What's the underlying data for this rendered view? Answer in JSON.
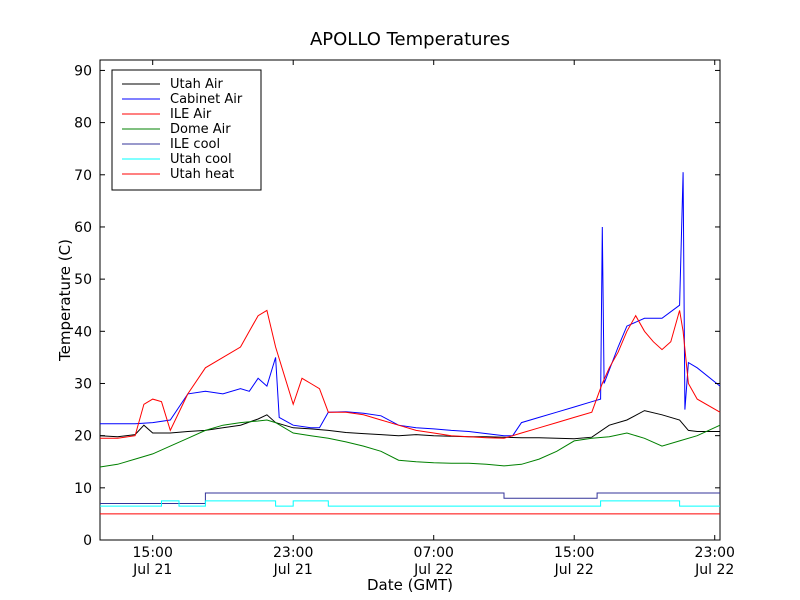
{
  "chart_data": {
    "type": "line",
    "title": "APOLLO Temperatures",
    "xlabel": "Date (GMT)",
    "ylabel": "Temperature (C)",
    "xlim": [
      12.0,
      47.3
    ],
    "ylim": [
      0,
      92
    ],
    "yticks": [
      0,
      10,
      20,
      30,
      40,
      50,
      60,
      70,
      80,
      90
    ],
    "xticks": [
      {
        "x": 15,
        "time": "15:00",
        "date": "Jul 21"
      },
      {
        "x": 23,
        "time": "23:00",
        "date": "Jul 21"
      },
      {
        "x": 31,
        "time": "07:00",
        "date": "Jul 22"
      },
      {
        "x": 39,
        "time": "15:00",
        "date": "Jul 22"
      },
      {
        "x": 47,
        "time": "23:00",
        "date": "Jul 22"
      }
    ],
    "legend_position": "top-left",
    "series": [
      {
        "name": "Utah Air",
        "color": "#000000",
        "points": [
          [
            12.0,
            20.0
          ],
          [
            13.0,
            19.8
          ],
          [
            14.0,
            20.2
          ],
          [
            14.5,
            22.0
          ],
          [
            15.0,
            20.5
          ],
          [
            16.0,
            20.5
          ],
          [
            17.0,
            20.8
          ],
          [
            18.0,
            21.0
          ],
          [
            19.0,
            21.5
          ],
          [
            20.0,
            22.0
          ],
          [
            21.0,
            23.2
          ],
          [
            21.5,
            24.0
          ],
          [
            22.0,
            22.5
          ],
          [
            23.0,
            21.5
          ],
          [
            24.0,
            21.3
          ],
          [
            25.0,
            21.0
          ],
          [
            26.0,
            20.6
          ],
          [
            27.0,
            20.4
          ],
          [
            28.0,
            20.2
          ],
          [
            29.0,
            20.0
          ],
          [
            30.0,
            20.2
          ],
          [
            31.0,
            20.0
          ],
          [
            32.0,
            19.9
          ],
          [
            33.0,
            19.8
          ],
          [
            34.0,
            19.8
          ],
          [
            35.0,
            19.7
          ],
          [
            36.0,
            19.6
          ],
          [
            37.0,
            19.6
          ],
          [
            38.0,
            19.5
          ],
          [
            39.0,
            19.4
          ],
          [
            40.0,
            19.7
          ],
          [
            41.0,
            22.0
          ],
          [
            42.0,
            23.0
          ],
          [
            43.0,
            24.8
          ],
          [
            44.0,
            24.0
          ],
          [
            45.0,
            23.0
          ],
          [
            45.5,
            21.0
          ],
          [
            46.0,
            20.8
          ],
          [
            47.3,
            20.8
          ]
        ]
      },
      {
        "name": "Cabinet Air",
        "color": "#0000ff",
        "points": [
          [
            12.0,
            22.3
          ],
          [
            14.0,
            22.3
          ],
          [
            15.0,
            22.5
          ],
          [
            16.0,
            23.0
          ],
          [
            17.0,
            28.0
          ],
          [
            18.0,
            28.5
          ],
          [
            19.0,
            28.0
          ],
          [
            20.0,
            29.0
          ],
          [
            20.5,
            28.5
          ],
          [
            21.0,
            31.0
          ],
          [
            21.5,
            29.5
          ],
          [
            22.0,
            35.0
          ],
          [
            22.2,
            23.5
          ],
          [
            23.0,
            22.0
          ],
          [
            24.0,
            21.5
          ],
          [
            24.5,
            21.5
          ],
          [
            25.0,
            24.5
          ],
          [
            26.0,
            24.6
          ],
          [
            27.0,
            24.3
          ],
          [
            28.0,
            23.8
          ],
          [
            29.0,
            22.0
          ],
          [
            30.0,
            21.5
          ],
          [
            31.0,
            21.3
          ],
          [
            32.0,
            21.0
          ],
          [
            33.0,
            20.8
          ],
          [
            34.0,
            20.4
          ],
          [
            35.0,
            20.0
          ],
          [
            35.5,
            20.0
          ],
          [
            36.0,
            22.5
          ],
          [
            37.0,
            23.5
          ],
          [
            38.0,
            24.5
          ],
          [
            39.0,
            25.5
          ],
          [
            40.0,
            26.5
          ],
          [
            40.5,
            27.0
          ],
          [
            40.6,
            60.0
          ],
          [
            40.7,
            30.0
          ],
          [
            41.5,
            37.0
          ],
          [
            42.0,
            41.0
          ],
          [
            43.0,
            42.5
          ],
          [
            44.0,
            42.5
          ],
          [
            45.0,
            45.0
          ],
          [
            45.2,
            70.5
          ],
          [
            45.3,
            25.0
          ],
          [
            45.5,
            34.0
          ],
          [
            46.0,
            33.0
          ],
          [
            47.3,
            29.5
          ]
        ]
      },
      {
        "name": "ILE Air",
        "color": "#ff0000",
        "points": [
          [
            12.0,
            19.5
          ],
          [
            13.0,
            19.5
          ],
          [
            14.0,
            20.0
          ],
          [
            14.5,
            26.0
          ],
          [
            15.0,
            27.0
          ],
          [
            15.5,
            26.5
          ],
          [
            16.0,
            21.0
          ],
          [
            17.0,
            28.0
          ],
          [
            18.0,
            33.0
          ],
          [
            19.0,
            35.0
          ],
          [
            20.0,
            37.0
          ],
          [
            20.5,
            40.0
          ],
          [
            21.0,
            43.0
          ],
          [
            21.5,
            44.0
          ],
          [
            22.0,
            37.0
          ],
          [
            23.0,
            26.0
          ],
          [
            23.5,
            31.0
          ],
          [
            24.0,
            30.0
          ],
          [
            24.5,
            29.0
          ],
          [
            25.0,
            24.5
          ],
          [
            26.0,
            24.5
          ],
          [
            27.0,
            24.0
          ],
          [
            28.0,
            23.0
          ],
          [
            29.0,
            22.0
          ],
          [
            30.0,
            21.0
          ],
          [
            31.0,
            20.5
          ],
          [
            32.0,
            20.0
          ],
          [
            33.0,
            19.8
          ],
          [
            34.0,
            19.6
          ],
          [
            35.0,
            19.5
          ],
          [
            36.0,
            20.5
          ],
          [
            37.0,
            21.5
          ],
          [
            38.0,
            22.5
          ],
          [
            39.0,
            23.5
          ],
          [
            40.0,
            24.5
          ],
          [
            40.6,
            30.0
          ],
          [
            41.0,
            33.0
          ],
          [
            41.5,
            36.0
          ],
          [
            42.0,
            40.0
          ],
          [
            42.5,
            43.0
          ],
          [
            43.0,
            40.0
          ],
          [
            43.5,
            38.0
          ],
          [
            44.0,
            36.5
          ],
          [
            44.5,
            38.0
          ],
          [
            45.0,
            44.0
          ],
          [
            45.2,
            40.0
          ],
          [
            45.5,
            30.0
          ],
          [
            46.0,
            27.0
          ],
          [
            47.3,
            24.5
          ]
        ]
      },
      {
        "name": "Dome Air",
        "color": "#008000",
        "points": [
          [
            12.0,
            14.0
          ],
          [
            13.0,
            14.5
          ],
          [
            14.0,
            15.5
          ],
          [
            15.0,
            16.5
          ],
          [
            16.0,
            18.0
          ],
          [
            17.0,
            19.5
          ],
          [
            18.0,
            21.0
          ],
          [
            19.0,
            22.0
          ],
          [
            20.0,
            22.5
          ],
          [
            21.0,
            22.8
          ],
          [
            21.5,
            23.0
          ],
          [
            22.0,
            22.5
          ],
          [
            23.0,
            20.5
          ],
          [
            24.0,
            20.0
          ],
          [
            25.0,
            19.5
          ],
          [
            26.0,
            18.8
          ],
          [
            27.0,
            18.0
          ],
          [
            28.0,
            17.0
          ],
          [
            29.0,
            15.3
          ],
          [
            30.0,
            15.0
          ],
          [
            31.0,
            14.8
          ],
          [
            32.0,
            14.7
          ],
          [
            33.0,
            14.7
          ],
          [
            34.0,
            14.5
          ],
          [
            35.0,
            14.2
          ],
          [
            36.0,
            14.5
          ],
          [
            37.0,
            15.5
          ],
          [
            38.0,
            17.0
          ],
          [
            39.0,
            19.0
          ],
          [
            40.0,
            19.5
          ],
          [
            41.0,
            19.8
          ],
          [
            42.0,
            20.5
          ],
          [
            43.0,
            19.5
          ],
          [
            44.0,
            18.0
          ],
          [
            45.0,
            19.0
          ],
          [
            46.0,
            20.0
          ],
          [
            47.3,
            22.0
          ]
        ]
      },
      {
        "name": "ILE cool",
        "color": "#333399",
        "points": [
          [
            12.0,
            7.0
          ],
          [
            18.0,
            7.0
          ],
          [
            18.0,
            9.0
          ],
          [
            35.0,
            9.0
          ],
          [
            35.0,
            8.0
          ],
          [
            40.3,
            8.0
          ],
          [
            40.3,
            9.0
          ],
          [
            47.3,
            9.0
          ]
        ]
      },
      {
        "name": "Utah cool",
        "color": "#00ffff",
        "points": [
          [
            12.0,
            6.5
          ],
          [
            15.5,
            6.5
          ],
          [
            15.5,
            7.5
          ],
          [
            16.5,
            7.5
          ],
          [
            16.5,
            6.5
          ],
          [
            18.0,
            6.5
          ],
          [
            18.0,
            7.5
          ],
          [
            22.0,
            7.5
          ],
          [
            22.0,
            6.5
          ],
          [
            23.0,
            6.5
          ],
          [
            23.0,
            7.5
          ],
          [
            25.0,
            7.5
          ],
          [
            25.0,
            6.5
          ],
          [
            40.5,
            6.5
          ],
          [
            40.5,
            7.5
          ],
          [
            45.0,
            7.5
          ],
          [
            45.0,
            6.5
          ],
          [
            47.3,
            6.5
          ]
        ]
      },
      {
        "name": "Utah heat",
        "color": "#ff0000",
        "points": [
          [
            12.0,
            5.0
          ],
          [
            47.3,
            5.0
          ]
        ]
      }
    ]
  }
}
